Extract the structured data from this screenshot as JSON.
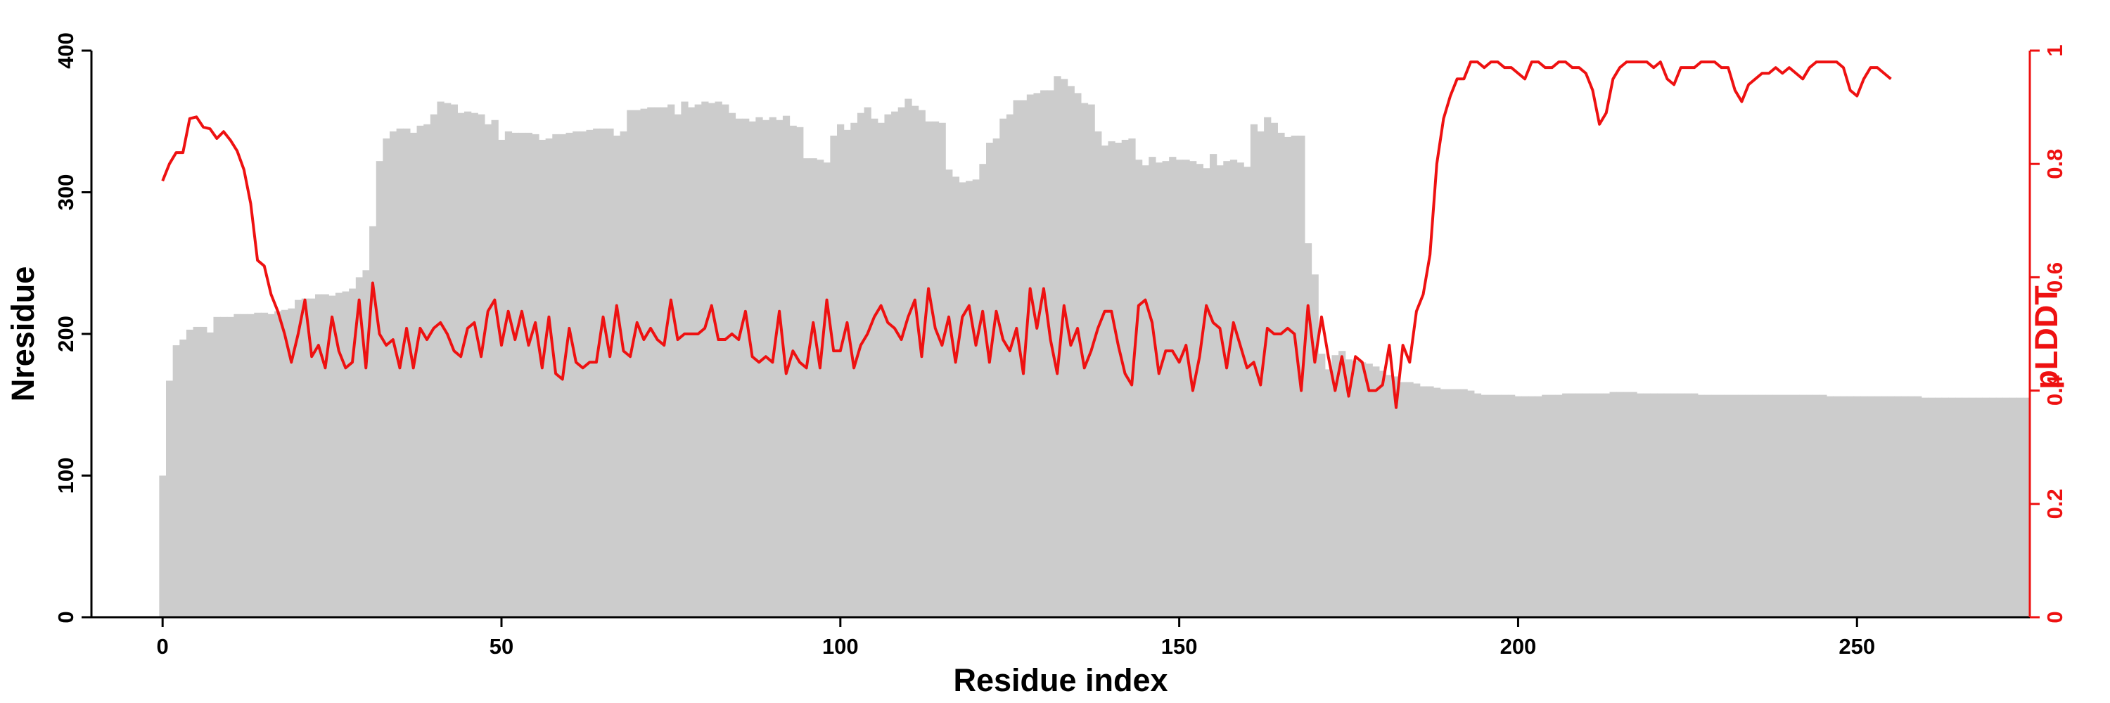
{
  "chart_data": {
    "type": "bar+line",
    "xlabel": "Residue index",
    "ylabel_left": "Nresidue",
    "ylabel_right": "pLDDT",
    "xlim": [
      -10.5,
      275.5
    ],
    "ylim_left": [
      0,
      400
    ],
    "ylim_right": [
      0,
      1
    ],
    "x_ticks": [
      0,
      50,
      100,
      150,
      200,
      250
    ],
    "x_tick_labels": [
      "0",
      "50",
      "100",
      "150",
      "200",
      "250"
    ],
    "y_left_ticks": [
      0,
      100,
      200,
      300,
      400
    ],
    "y_left_tick_labels": [
      "0",
      "100",
      "200",
      "300",
      "400"
    ],
    "y_right_ticks": [
      0,
      0.2,
      0.4,
      0.6,
      0.8,
      1
    ],
    "y_right_tick_labels": [
      "0",
      "0.2",
      "0.4",
      "0.6",
      "0.8",
      "1"
    ],
    "colors": {
      "bars": "#cccccc",
      "line": "#ee1111",
      "right_axis": "#ee1111",
      "axis": "#000000"
    },
    "series": [
      {
        "name": "Nresidue",
        "kind": "bar",
        "axis": "left",
        "values": [
          100,
          167,
          192,
          196,
          203,
          205,
          205,
          201,
          212,
          212,
          212,
          214,
          214,
          214,
          215,
          215,
          214,
          216,
          217,
          218,
          224,
          225,
          225,
          228,
          228,
          227,
          229,
          230,
          232,
          240,
          245,
          276,
          322,
          338,
          343,
          345,
          345,
          342,
          347,
          348,
          355,
          364,
          363,
          362,
          356,
          357,
          356,
          355,
          348,
          351,
          337,
          343,
          342,
          342,
          342,
          341,
          337,
          338,
          341,
          341,
          342,
          343,
          343,
          344,
          345,
          345,
          345,
          340,
          343,
          358,
          358,
          359,
          360,
          360,
          360,
          362,
          355,
          364,
          360,
          362,
          364,
          363,
          364,
          362,
          356,
          352,
          352,
          350,
          353,
          351,
          353,
          351,
          354,
          347,
          346,
          324,
          324,
          323,
          321,
          340,
          348,
          344,
          349,
          356,
          360,
          352,
          349,
          355,
          357,
          360,
          366,
          361,
          358,
          350,
          350,
          349,
          316,
          311,
          307,
          308,
          309,
          320,
          335,
          338,
          352,
          355,
          365,
          365,
          369,
          370,
          372,
          372,
          382,
          380,
          375,
          370,
          363,
          362,
          343,
          333,
          336,
          335,
          337,
          338,
          323,
          319,
          325,
          321,
          322,
          325,
          323,
          323,
          322,
          320,
          317,
          327,
          319,
          322,
          323,
          321,
          318,
          348,
          343,
          353,
          349,
          342,
          339,
          340,
          340,
          264,
          242,
          186,
          175,
          185,
          188,
          182,
          181,
          180,
          179,
          177,
          174,
          171,
          170,
          166,
          166,
          165,
          163,
          163,
          162,
          161,
          161,
          161,
          161,
          160,
          158,
          157,
          157,
          157,
          157,
          157,
          156,
          156,
          156,
          156,
          157,
          157,
          157,
          158,
          158,
          158,
          158,
          158,
          158,
          158,
          159,
          159,
          159,
          159,
          158,
          158,
          158,
          158,
          158,
          158,
          158,
          158,
          158,
          157,
          157,
          157,
          157,
          157,
          157,
          157,
          157,
          157,
          157,
          157,
          157,
          157,
          157,
          157,
          157,
          157,
          157,
          157,
          156,
          156,
          156,
          156,
          156,
          156,
          156,
          156,
          156,
          156,
          156,
          156,
          156,
          156,
          155,
          155,
          155,
          155,
          155,
          155,
          155,
          155,
          155,
          155,
          155,
          155,
          155,
          155,
          155,
          155
        ]
      },
      {
        "name": "pLDDT",
        "kind": "line",
        "axis": "right",
        "values": [
          0.77,
          0.8,
          0.82,
          0.82,
          0.88,
          0.883,
          0.865,
          0.862,
          0.845,
          0.857,
          0.842,
          0.823,
          0.79,
          0.73,
          0.63,
          0.62,
          0.57,
          0.54,
          0.5,
          0.45,
          0.5,
          0.56,
          0.46,
          0.48,
          0.44,
          0.53,
          0.47,
          0.44,
          0.45,
          0.56,
          0.44,
          0.59,
          0.5,
          0.48,
          0.49,
          0.44,
          0.51,
          0.44,
          0.51,
          0.49,
          0.51,
          0.52,
          0.5,
          0.47,
          0.46,
          0.51,
          0.52,
          0.46,
          0.54,
          0.56,
          0.48,
          0.54,
          0.49,
          0.54,
          0.48,
          0.52,
          0.44,
          0.53,
          0.43,
          0.42,
          0.51,
          0.45,
          0.44,
          0.45,
          0.45,
          0.53,
          0.46,
          0.55,
          0.47,
          0.46,
          0.52,
          0.49,
          0.51,
          0.49,
          0.48,
          0.56,
          0.49,
          0.5,
          0.5,
          0.5,
          0.51,
          0.55,
          0.49,
          0.49,
          0.5,
          0.49,
          0.54,
          0.46,
          0.45,
          0.46,
          0.45,
          0.54,
          0.43,
          0.47,
          0.45,
          0.44,
          0.52,
          0.44,
          0.56,
          0.47,
          0.47,
          0.52,
          0.44,
          0.48,
          0.5,
          0.53,
          0.55,
          0.52,
          0.51,
          0.49,
          0.53,
          0.56,
          0.46,
          0.58,
          0.51,
          0.48,
          0.53,
          0.45,
          0.53,
          0.55,
          0.48,
          0.54,
          0.45,
          0.54,
          0.49,
          0.47,
          0.51,
          0.43,
          0.58,
          0.51,
          0.58,
          0.49,
          0.43,
          0.55,
          0.48,
          0.51,
          0.44,
          0.47,
          0.51,
          0.54,
          0.54,
          0.48,
          0.43,
          0.41,
          0.55,
          0.56,
          0.52,
          0.43,
          0.47,
          0.47,
          0.45,
          0.48,
          0.4,
          0.46,
          0.55,
          0.52,
          0.51,
          0.44,
          0.52,
          0.48,
          0.44,
          0.45,
          0.41,
          0.51,
          0.5,
          0.5,
          0.51,
          0.5,
          0.4,
          0.55,
          0.45,
          0.53,
          0.46,
          0.4,
          0.46,
          0.39,
          0.46,
          0.45,
          0.4,
          0.4,
          0.41,
          0.48,
          0.37,
          0.48,
          0.45,
          0.54,
          0.57,
          0.64,
          0.8,
          0.88,
          0.92,
          0.95,
          0.95,
          0.98,
          0.98,
          0.97,
          0.98,
          0.98,
          0.97,
          0.97,
          0.96,
          0.95,
          0.98,
          0.98,
          0.97,
          0.97,
          0.98,
          0.98,
          0.97,
          0.97,
          0.96,
          0.93,
          0.87,
          0.89,
          0.95,
          0.97,
          0.98,
          0.98,
          0.98,
          0.98,
          0.97,
          0.98,
          0.95,
          0.94,
          0.97,
          0.97,
          0.97,
          0.98,
          0.98,
          0.98,
          0.97,
          0.97,
          0.93,
          0.91,
          0.94,
          0.95,
          0.96,
          0.96,
          0.97,
          0.96,
          0.97,
          0.96,
          0.95,
          0.97,
          0.98,
          0.98,
          0.98,
          0.98,
          0.97,
          0.93,
          0.92,
          0.95,
          0.97,
          0.97,
          0.96,
          0.95
        ]
      }
    ]
  }
}
